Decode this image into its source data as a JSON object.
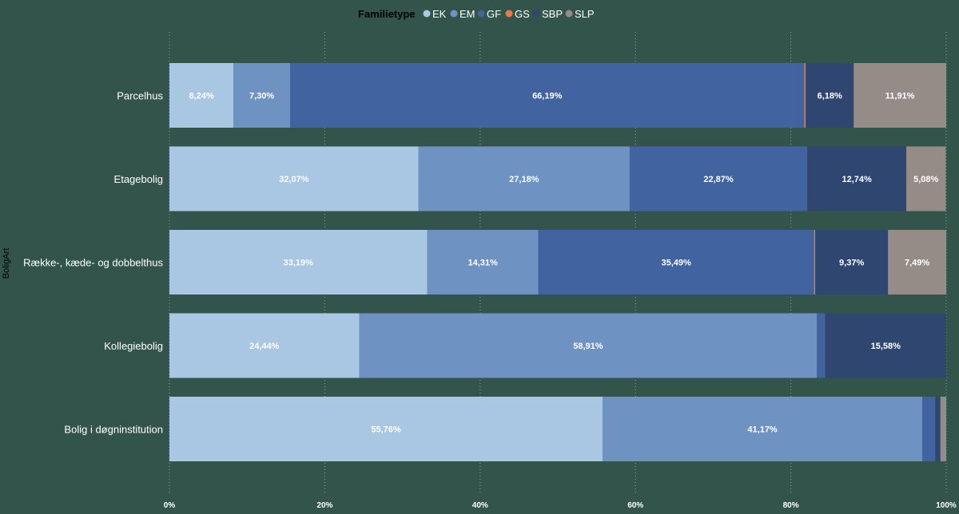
{
  "chart_data": {
    "type": "bar",
    "orientation": "horizontal",
    "stacked": "100%",
    "legend_title": "Familietype",
    "legend_position": "top-center",
    "ylabel": "BoligArt",
    "xlim": [
      0,
      100
    ],
    "x_ticks": [
      0,
      20,
      40,
      60,
      80,
      100
    ],
    "x_tick_labels": [
      "0%",
      "20%",
      "40%",
      "60%",
      "80%",
      "100%"
    ],
    "grid": "vertical-dotted",
    "categories": [
      "Parcelhus",
      "Etagebolig",
      "Række-, kæde- og dobbelthus",
      "Kollegiebolig",
      "Bolig i døgninstitution"
    ],
    "series": [
      {
        "name": "EK",
        "color": "#A9C6E3",
        "values": [
          8.24,
          32.07,
          33.19,
          24.44,
          55.76
        ],
        "labels": [
          "8,24%",
          "32,07%",
          "33,19%",
          "24,44%",
          "55,76%"
        ]
      },
      {
        "name": "EM",
        "color": "#6E93C2",
        "values": [
          7.3,
          27.18,
          14.31,
          58.91,
          41.17
        ],
        "labels": [
          "7,30%",
          "27,18%",
          "14,31%",
          "58,91%",
          "41,17%"
        ]
      },
      {
        "name": "GF",
        "color": "#4164A0",
        "values": [
          66.19,
          22.87,
          35.49,
          1.07,
          1.67
        ],
        "labels": [
          "66,19%",
          "22,87%",
          "35,49%",
          "",
          ""
        ]
      },
      {
        "name": "GS",
        "color": "#E8794A",
        "values": [
          0.18,
          0,
          0.15,
          0,
          0
        ],
        "labels": [
          "",
          "",
          "",
          "",
          ""
        ]
      },
      {
        "name": "SBP",
        "color": "#2F4670",
        "values": [
          6.18,
          12.74,
          9.37,
          15.58,
          0.65
        ],
        "labels": [
          "6,18%",
          "12,74%",
          "9,37%",
          "15,58%",
          ""
        ]
      },
      {
        "name": "SLP",
        "color": "#958C88",
        "values": [
          11.91,
          5.08,
          7.49,
          0,
          0.75
        ],
        "labels": [
          "11,91%",
          "5,08%",
          "7,49%",
          "",
          ""
        ]
      }
    ]
  }
}
